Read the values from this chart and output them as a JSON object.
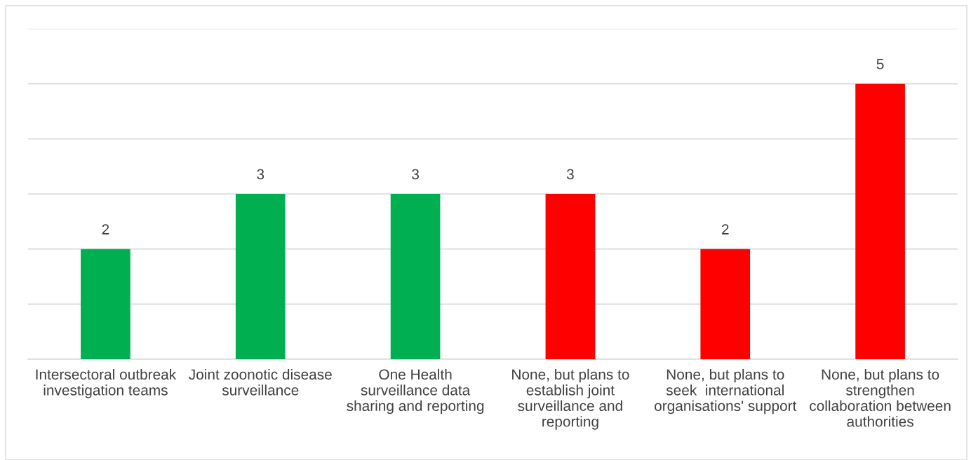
{
  "chart_data": {
    "type": "bar",
    "categories": [
      "Intersectoral outbreak\ninvestigation teams",
      "Joint zoonotic disease\nsurveillance",
      "One Health\nsurveillance data\nsharing and reporting",
      "None, but plans to\nestablish joint\nsurveillance and\nreporting",
      "None, but plans to\nseek  international\norganisations' support",
      "None, but plans to\nstrengthen\ncollaboration between\nauthorities"
    ],
    "values": [
      2,
      3,
      3,
      3,
      2,
      5
    ],
    "colors": [
      "#00b050",
      "#00b050",
      "#00b050",
      "#ff0000",
      "#ff0000",
      "#ff0000"
    ],
    "ylim": [
      0,
      6
    ],
    "yticks": [
      {
        "value": 0,
        "label": null
      },
      {
        "value": 1,
        "label": null
      },
      {
        "value": 2,
        "label": null
      },
      {
        "value": 3,
        "label": null
      },
      {
        "value": 4,
        "label": null
      },
      {
        "value": 5,
        "label": null
      },
      {
        "value": 6,
        "label": null
      }
    ],
    "grid": "y",
    "tick_labels": "x",
    "data_labels": true,
    "legend": false
  }
}
